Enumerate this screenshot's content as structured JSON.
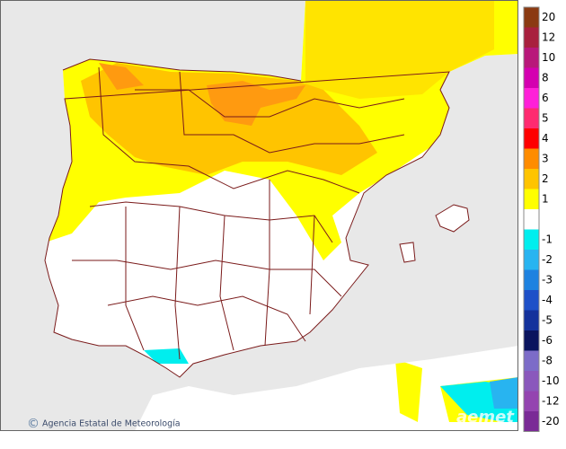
{
  "legend": {
    "warm": [
      {
        "label": "20",
        "color": "#8b3a12"
      },
      {
        "label": "12",
        "color": "#a8203e"
      },
      {
        "label": "10",
        "color": "#b8187a"
      },
      {
        "label": "8",
        "color": "#d400b0"
      },
      {
        "label": "6",
        "color": "#ff20d8"
      },
      {
        "label": "5",
        "color": "#ff2a70"
      },
      {
        "label": "4",
        "color": "#ff0000"
      },
      {
        "label": "3",
        "color": "#ff8c00"
      },
      {
        "label": "2",
        "color": "#ffc400"
      },
      {
        "label": "1",
        "color": "#ffff00"
      }
    ],
    "cold": [
      {
        "label": "-1",
        "color": "#00eeee"
      },
      {
        "label": "-2",
        "color": "#28b4f0"
      },
      {
        "label": "-3",
        "color": "#1e82e0"
      },
      {
        "label": "-4",
        "color": "#1e50c8"
      },
      {
        "label": "-5",
        "color": "#14329c"
      },
      {
        "label": "-6",
        "color": "#0a145e"
      },
      {
        "label": "-8",
        "color": "#7c6cc8"
      },
      {
        "label": "-10",
        "color": "#8a58bc"
      },
      {
        "label": "-12",
        "color": "#9444b0"
      },
      {
        "label": "-20",
        "color": "#7a2a96"
      }
    ]
  },
  "credit": "Agencia Estatal de Meteorología",
  "logo": "aemet"
}
